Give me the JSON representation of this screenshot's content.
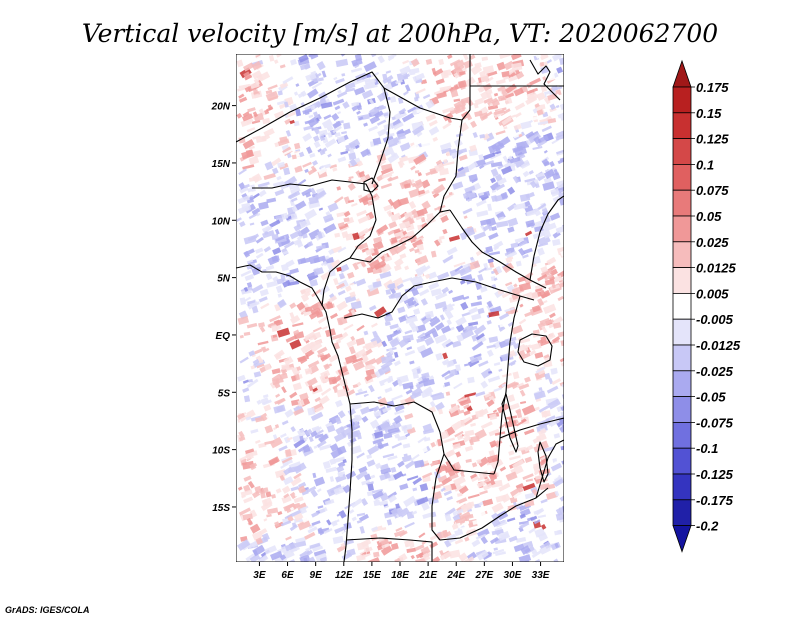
{
  "chart_data": {
    "type": "heatmap",
    "title": "Vertical velocity [m/s] at 200hPa, VT: 2020062700",
    "variable": "Vertical velocity",
    "units": "m/s",
    "level": "200hPa",
    "valid_time": "2020062700",
    "x_axis": {
      "ticks": [
        "3E",
        "6E",
        "9E",
        "12E",
        "15E",
        "18E",
        "21E",
        "24E",
        "27E",
        "30E",
        "33E"
      ],
      "tick_values": [
        3,
        6,
        9,
        12,
        15,
        18,
        21,
        24,
        27,
        30,
        33
      ],
      "range": [
        0.5,
        35.5
      ]
    },
    "y_axis": {
      "ticks": [
        "20N",
        "15N",
        "10N",
        "5N",
        "EQ",
        "5S",
        "10S",
        "15S"
      ],
      "tick_values": [
        20,
        15,
        10,
        5,
        0,
        -5,
        -10,
        -15
      ],
      "range": [
        -19.8,
        24.5
      ]
    },
    "colorbar": {
      "labels": [
        "0.175",
        "0.15",
        "0.125",
        "0.1",
        "0.075",
        "0.05",
        "0.025",
        "0.0125",
        "0.005",
        "-0.005",
        "-0.0125",
        "-0.025",
        "-0.05",
        "-0.075",
        "-0.1",
        "-0.125",
        "-0.175",
        "-0.2"
      ],
      "colors": [
        "#a01818",
        "#b82020",
        "#c83030",
        "#d44848",
        "#e06060",
        "#e87a7a",
        "#f09898",
        "#f6bcbc",
        "#fbe2e2",
        "#ffffff",
        "#e4e4fa",
        "#c8c8f6",
        "#aaaaf0",
        "#8e8ee8",
        "#7070e0",
        "#5252d4",
        "#3434c0",
        "#2020a8",
        "#1414a0"
      ]
    }
  },
  "credit": "GrADS: IGES/COLA"
}
